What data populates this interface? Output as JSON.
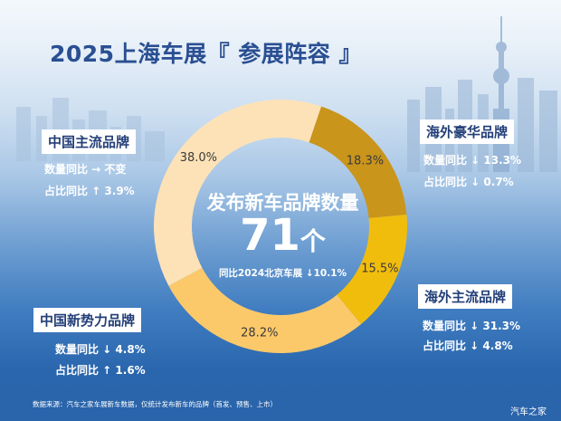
{
  "title": "2025上海车展『 参展阵容 』",
  "chart_data": {
    "type": "pie",
    "style": "donut",
    "slices": [
      {
        "label": "中国主流品牌",
        "value": 38.0,
        "pct_label": "38.0%",
        "color": "#fde2b8",
        "stats": [
          "数量同比 → 不变",
          "占比同比 ↑ 3.9%"
        ]
      },
      {
        "label": "海外豪华品牌",
        "value": 18.3,
        "pct_label": "18.3%",
        "color": "#c9951a",
        "stats": [
          "数量同比 ↓ 13.3%",
          "占比同比 ↓ 0.7%"
        ]
      },
      {
        "label": "海外主流品牌",
        "value": 15.5,
        "pct_label": "15.5%",
        "color": "#f1bd0d",
        "stats": [
          "数量同比 ↓ 31.3%",
          "占比同比 ↓ 4.8%"
        ]
      },
      {
        "label": "中国新势力品牌",
        "value": 28.2,
        "pct_label": "28.2%",
        "color": "#fcc96a",
        "stats": [
          "数量同比 ↓ 4.8%",
          "占比同比 ↑ 1.6%"
        ]
      }
    ],
    "center": {
      "label": "发布新车品牌数量",
      "value": "71",
      "unit": "个",
      "comparison": "同比2024北京车展 ↓10.1%"
    }
  },
  "footer": "数据来源：汽车之家车展新车数据，仅统计发布新车的品牌（首发、预售、上市）",
  "logo": "汽车之家"
}
